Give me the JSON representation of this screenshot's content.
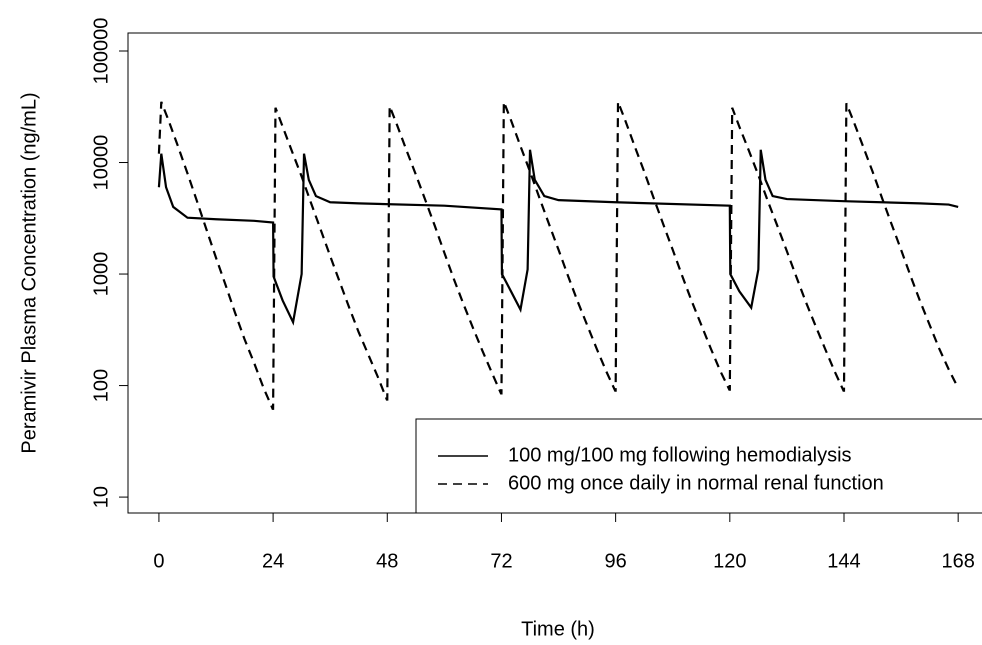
{
  "chart_data": {
    "type": "line",
    "x_label": "Time (h)",
    "y_label": "Peramivir Plasma Concentration (ng/mL)",
    "y_log": true,
    "legend": "bottom-right",
    "xlim": [
      -6.5,
      172.8
    ],
    "xticks": [
      0,
      24,
      48,
      72,
      96,
      120,
      144,
      168
    ],
    "ylim": [
      7.2,
      145000
    ],
    "yticks": [
      10,
      100,
      1000,
      10000,
      100000
    ],
    "series": [
      {
        "name": "100 mg/100 mg following hemodialysis",
        "color": "#000000",
        "dash": "solid",
        "x": [
          0,
          0.5,
          1.5,
          3,
          6,
          12,
          20,
          24,
          24.1,
          26,
          28.2,
          30,
          30.5,
          31.5,
          33,
          36,
          42,
          60,
          72,
          72.1,
          74,
          76,
          77.5,
          78,
          79,
          81,
          84,
          96,
          120,
          120.1,
          122,
          124.5,
          126,
          126.5,
          127.5,
          129,
          132,
          144,
          160,
          166,
          168
        ],
        "values": [
          6000,
          12000,
          6000,
          4000,
          3200,
          3100,
          3000,
          2900,
          950,
          580,
          370,
          1000,
          12000,
          7000,
          5000,
          4400,
          4300,
          4100,
          3800,
          1000,
          700,
          480,
          1100,
          13000,
          7000,
          5000,
          4600,
          4400,
          4100,
          1000,
          700,
          500,
          1100,
          13000,
          7000,
          5000,
          4700,
          4500,
          4300,
          4200,
          4000
        ]
      },
      {
        "name": "600 mg once daily in normal renal function",
        "color": "#000000",
        "dash": "dashed",
        "x": [
          0,
          0.5,
          2,
          4,
          6,
          8,
          10,
          12,
          14,
          16,
          18,
          20,
          22,
          23.9,
          24,
          24.5,
          26,
          28,
          30,
          32,
          34,
          36,
          38,
          40,
          42,
          44,
          46,
          47.9,
          48,
          48.5,
          50,
          52,
          54,
          56,
          58,
          60,
          62,
          64,
          66,
          68,
          70,
          71.9,
          72,
          72.5,
          74,
          76,
          78,
          80,
          82,
          84,
          86,
          88,
          90,
          92,
          94,
          95.9,
          96,
          96.5,
          98,
          100,
          102,
          104,
          106,
          108,
          110,
          112,
          114,
          116,
          118,
          119.9,
          120,
          120.5,
          122,
          124,
          126,
          128,
          130,
          132,
          134,
          136,
          138,
          140,
          142,
          143.9,
          144,
          144.5,
          146,
          148,
          150,
          152,
          154,
          156,
          158,
          160,
          162,
          164,
          166,
          168
        ],
        "values": [
          12000,
          35000,
          24000,
          14000,
          8000,
          4500,
          2500,
          1400,
          800,
          450,
          260,
          160,
          95,
          62,
          62,
          31000,
          21000,
          12500,
          7500,
          4300,
          2500,
          1450,
          850,
          500,
          300,
          190,
          120,
          75,
          75,
          32000,
          22000,
          13000,
          7800,
          4600,
          2700,
          1550,
          900,
          540,
          330,
          205,
          130,
          85,
          85,
          35000,
          24000,
          14000,
          8300,
          4800,
          2800,
          1650,
          960,
          570,
          350,
          215,
          135,
          90,
          90,
          35000,
          24000,
          14000,
          8300,
          4800,
          2800,
          1650,
          960,
          570,
          350,
          215,
          135,
          92,
          92,
          31000,
          21000,
          12800,
          7700,
          4500,
          2700,
          1600,
          940,
          560,
          345,
          215,
          135,
          90,
          90,
          34000,
          23500,
          14000,
          8300,
          4800,
          2800,
          1650,
          960,
          570,
          350,
          215,
          140,
          95
        ]
      }
    ]
  }
}
